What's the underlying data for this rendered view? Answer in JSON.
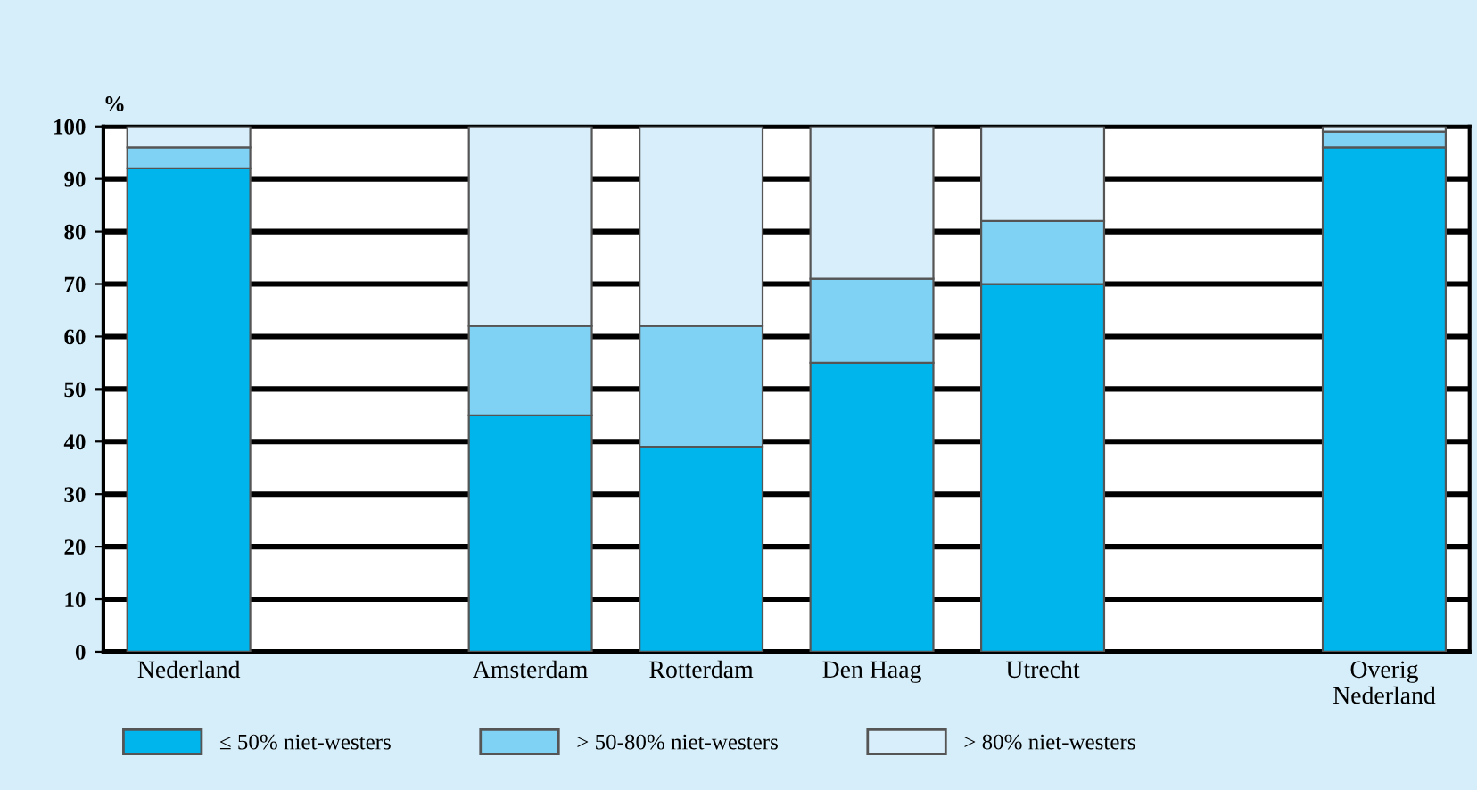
{
  "chart_data": {
    "type": "bar",
    "stacked": true,
    "ylabel": "%",
    "categories": [
      "Nederland",
      null,
      "Amsterdam",
      "Rotterdam",
      "Den Haag",
      "Utrecht",
      null,
      "Overig\nNederland"
    ],
    "series": [
      {
        "name": "≤ 50% niet-westers",
        "color": "#00b4ec",
        "values": [
          92,
          null,
          45,
          39,
          55,
          70,
          null,
          96
        ]
      },
      {
        "name": "> 50-80% niet-westers",
        "color": "#80d2f4",
        "values": [
          4,
          null,
          17,
          23,
          16,
          12,
          null,
          3
        ]
      },
      {
        "name": "> 80% niet-westers",
        "color": "#d8eefa",
        "values": [
          4,
          null,
          38,
          38,
          29,
          18,
          null,
          1
        ]
      }
    ],
    "ylim": [
      0,
      100
    ],
    "yticks": [
      0,
      10,
      20,
      30,
      40,
      50,
      60,
      70,
      80,
      90,
      100
    ],
    "grid": "y",
    "legend": "bottom"
  }
}
